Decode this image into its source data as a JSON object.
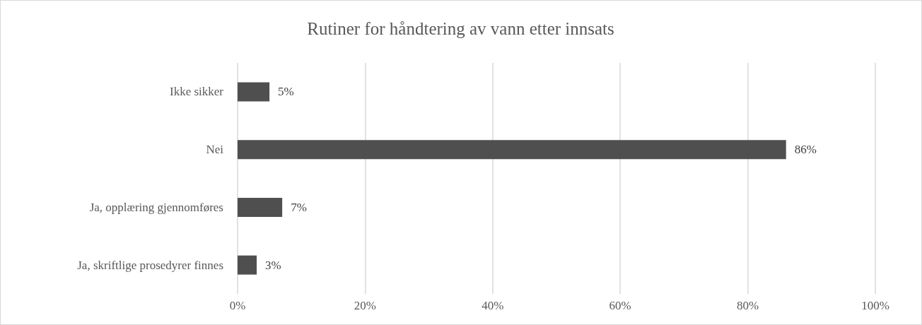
{
  "chart_data": {
    "type": "bar",
    "orientation": "horizontal",
    "title": "Rutiner for håndtering av vann etter innsats",
    "categories": [
      "Ikke sikker",
      "Nei",
      "Ja, opplæring gjennomføres",
      "Ja, skriftlige prosedyrer finnes"
    ],
    "values": [
      5,
      86,
      7,
      3
    ],
    "value_labels": [
      "5%",
      "86%",
      "7%",
      "3%"
    ],
    "color": "#4f4f4f",
    "xlim": [
      0,
      100
    ],
    "xticks": [
      {
        "value": 0,
        "label": "0%"
      },
      {
        "value": 20,
        "label": "20%"
      },
      {
        "value": 40,
        "label": "40%"
      },
      {
        "value": 60,
        "label": "60%"
      },
      {
        "value": 80,
        "label": "80%"
      },
      {
        "value": 100,
        "label": "100%"
      }
    ],
    "grid": "x"
  }
}
